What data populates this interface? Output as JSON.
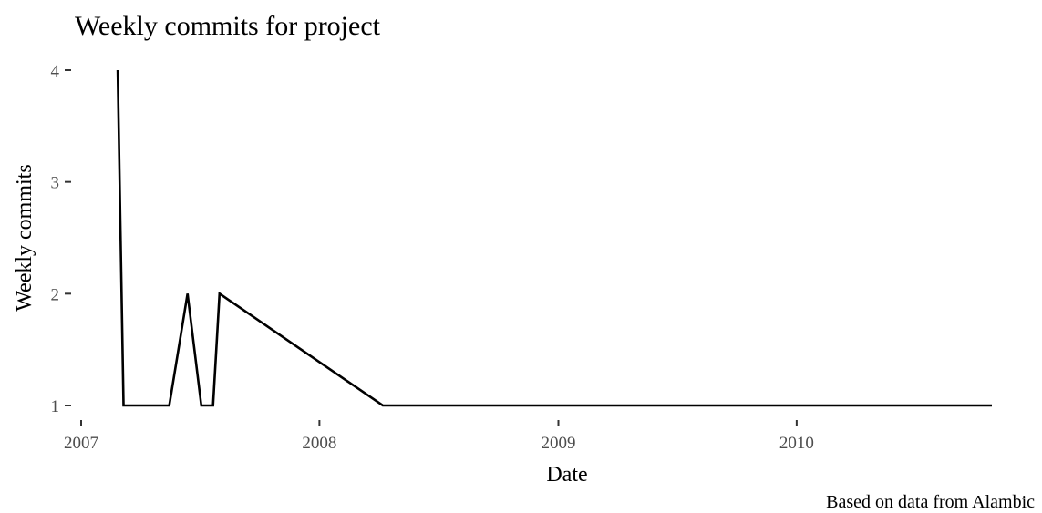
{
  "chart_data": {
    "type": "line",
    "title": "Weekly commits for project",
    "xlabel": "Date",
    "ylabel": "Weekly commits",
    "caption": "Based on data from Alambic",
    "x_ticks": [
      "2007",
      "2008",
      "2009",
      "2010"
    ],
    "y_ticks": [
      "1",
      "2",
      "3",
      "4"
    ],
    "xlim": [
      "2007-01-01",
      "2010-10-27"
    ],
    "ylim": [
      1,
      4
    ],
    "grid": false,
    "x": [
      "2007-02-26",
      "2007-03-07",
      "2007-05-16",
      "2007-06-13",
      "2007-07-04",
      "2007-07-22",
      "2007-08-01",
      "2008-04-07",
      "2010-10-27"
    ],
    "values": [
      4,
      1,
      1,
      2,
      1,
      1,
      2,
      1,
      1
    ]
  }
}
